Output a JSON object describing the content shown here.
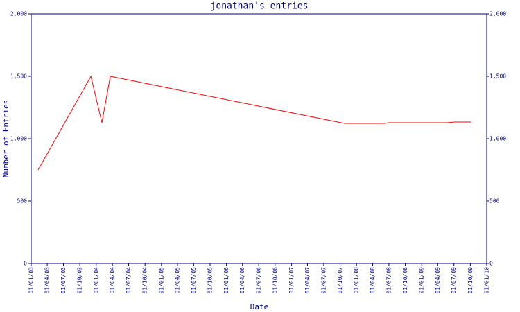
{
  "chart_data": {
    "type": "line",
    "title": "jonathan's entries",
    "x_label": "Date",
    "y_label": "Number of Entries",
    "x": [
      "2003-02-09",
      "2003-12-02",
      "2004-02-02",
      "2004-03-20",
      "2007-10-26",
      "2008-06-08",
      "2008-06-28",
      "2009-05-25",
      "2009-07-02",
      "2009-10-08"
    ],
    "values": [
      750,
      1500,
      1128,
      1500,
      1122,
      1122,
      1128,
      1128,
      1133,
      1133
    ],
    "color": "#ff0000",
    "ylim": [
      0,
      2000
    ],
    "yticks": [
      0,
      500,
      {
        "value": 1000,
        "label": "1,000"
      },
      {
        "value": 1500,
        "label": "1,500"
      },
      {
        "value": 2000,
        "label": "2,000"
      }
    ],
    "xlim": [
      "2003-01-01",
      "2010-01-01"
    ],
    "xticks": [
      {
        "value": "2003-01-01",
        "label": "01/01/03"
      },
      {
        "value": "2003-04-01",
        "label": "01/04/03"
      },
      {
        "value": "2003-07-01",
        "label": "01/07/03"
      },
      {
        "value": "2003-10-01",
        "label": "01/10/03"
      },
      {
        "value": "2004-01-01",
        "label": "01/01/04"
      },
      {
        "value": "2004-04-01",
        "label": "01/04/04"
      },
      {
        "value": "2004-07-01",
        "label": "01/07/04"
      },
      {
        "value": "2004-10-01",
        "label": "01/10/04"
      },
      {
        "value": "2005-01-01",
        "label": "01/01/05"
      },
      {
        "value": "2005-04-01",
        "label": "01/04/05"
      },
      {
        "value": "2005-07-01",
        "label": "01/07/05"
      },
      {
        "value": "2005-10-01",
        "label": "01/10/05"
      },
      {
        "value": "2006-01-01",
        "label": "01/01/06"
      },
      {
        "value": "2006-04-01",
        "label": "01/04/06"
      },
      {
        "value": "2006-07-01",
        "label": "01/07/06"
      },
      {
        "value": "2006-10-01",
        "label": "01/10/06"
      },
      {
        "value": "2007-01-01",
        "label": "01/01/07"
      },
      {
        "value": "2007-04-01",
        "label": "01/04/07"
      },
      {
        "value": "2007-07-01",
        "label": "01/07/07"
      },
      {
        "value": "2007-10-01",
        "label": "01/10/07"
      },
      {
        "value": "2008-01-01",
        "label": "01/01/08"
      },
      {
        "value": "2008-04-01",
        "label": "01/04/08"
      },
      {
        "value": "2008-07-01",
        "label": "01/07/08"
      },
      {
        "value": "2008-10-01",
        "label": "01/10/08"
      },
      {
        "value": "2009-01-01",
        "label": "01/01/09"
      },
      {
        "value": "2009-04-01",
        "label": "01/04/09"
      },
      {
        "value": "2009-07-01",
        "label": "01/07/09"
      },
      {
        "value": "2009-10-01",
        "label": "01/10/09"
      },
      {
        "value": "2010-01-01",
        "label": "01/01/10"
      }
    ],
    "mirror_y_axis": true
  }
}
